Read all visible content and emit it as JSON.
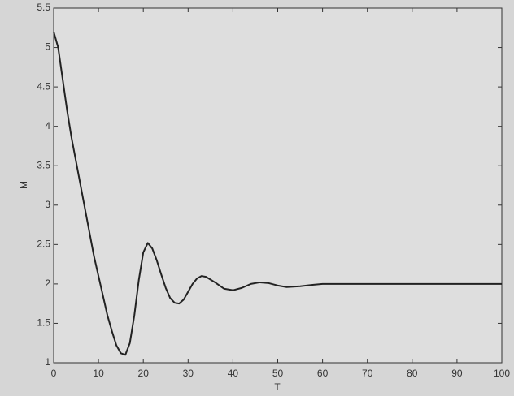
{
  "chart_data": {
    "type": "line",
    "xlabel": "T",
    "ylabel": "M",
    "x": [
      0,
      1,
      2,
      3,
      4,
      5,
      6,
      7,
      8,
      9,
      10,
      11,
      12,
      13,
      14,
      15,
      16,
      17,
      18,
      19,
      20,
      21,
      22,
      23,
      24,
      25,
      26,
      27,
      28,
      29,
      30,
      31,
      32,
      33,
      34,
      36,
      38,
      40,
      42,
      44,
      46,
      48,
      50,
      52,
      55,
      58,
      60,
      70,
      80,
      90,
      100
    ],
    "series": [
      {
        "color": "#222222",
        "values": [
          5.2,
          5.0,
          4.6,
          4.2,
          3.85,
          3.55,
          3.25,
          2.95,
          2.65,
          2.35,
          2.1,
          1.85,
          1.6,
          1.4,
          1.22,
          1.12,
          1.1,
          1.25,
          1.6,
          2.05,
          2.4,
          2.52,
          2.45,
          2.3,
          2.12,
          1.95,
          1.82,
          1.76,
          1.75,
          1.8,
          1.9,
          2.0,
          2.07,
          2.1,
          2.09,
          2.02,
          1.94,
          1.92,
          1.95,
          2.0,
          2.02,
          2.01,
          1.98,
          1.96,
          1.97,
          1.99,
          2.0,
          2.0,
          2.0,
          2.0,
          2.0
        ]
      }
    ],
    "xlim": [
      0,
      100
    ],
    "xticks": [
      0,
      10,
      20,
      30,
      40,
      50,
      60,
      70,
      80,
      90,
      100
    ],
    "ylim": [
      1,
      5.5
    ],
    "yticks": [
      1,
      1.5,
      2,
      2.5,
      3,
      3.5,
      4,
      4.5,
      5,
      5.5
    ],
    "grid": false
  }
}
